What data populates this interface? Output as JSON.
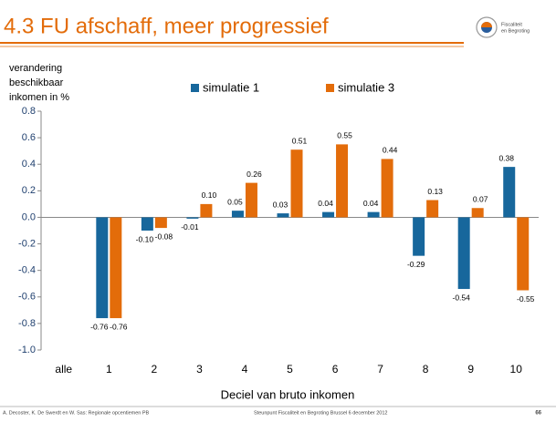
{
  "header": {
    "title": "4.3 FU afschaff, meer progressief",
    "logo_text": [
      "Fiscaliteit",
      "en Begroting"
    ]
  },
  "chart_data": {
    "type": "bar",
    "ylabel": [
      "verandering",
      "beschikbaar",
      "inkomen in %"
    ],
    "xlabel": "Deciel van bruto inkomen",
    "categories": [
      "alle",
      "1",
      "2",
      "3",
      "4",
      "5",
      "6",
      "7",
      "8",
      "9",
      "10"
    ],
    "series": [
      {
        "name": "simulatie 1",
        "color": "#17679c",
        "values": [
          null,
          -0.76,
          -0.1,
          -0.01,
          0.05,
          0.03,
          0.04,
          0.04,
          -0.29,
          -0.54,
          0.38
        ],
        "value_labels": [
          null,
          "-0.76",
          "-0.10",
          "-0.01",
          "0.05",
          "0.03",
          "0.04",
          "0.04",
          "-0.29",
          "-0.54",
          "0.38"
        ]
      },
      {
        "name": "simulatie 3",
        "color": "#e36c0a",
        "values": [
          null,
          -0.76,
          -0.08,
          0.1,
          0.26,
          0.51,
          0.55,
          0.44,
          0.13,
          0.07,
          -0.55
        ],
        "value_labels": [
          null,
          "-0.76",
          "-0.08",
          "0.10",
          "0.26",
          "0.51",
          "0.55",
          "0.44",
          "0.13",
          "0.07",
          "-0.55"
        ]
      }
    ],
    "ylim": [
      -1.0,
      0.8
    ],
    "yticks": [
      0.8,
      0.6,
      0.4,
      0.2,
      {
        "value": 0,
        "label": "0.0"
      },
      -0.2,
      -0.4,
      -0.6,
      -0.8,
      {
        "value": -1,
        "label": "-1.0"
      }
    ],
    "legend": "top"
  },
  "footer": {
    "left": "A. Decoster, K. De Swerdt en W. Sas: Regionale opcentiemen PB",
    "center": "Steunpunt Fiscaliteit en Begroting Brussel 6 december 2012",
    "page": "66"
  }
}
